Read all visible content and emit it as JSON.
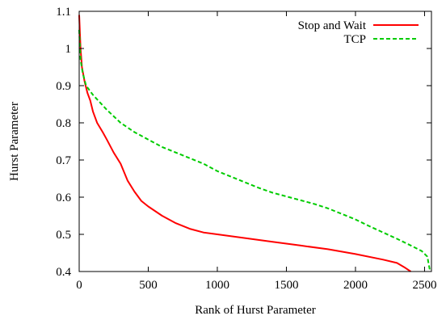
{
  "chart_data": {
    "type": "line",
    "xlabel": "Rank of Hurst Parameter",
    "ylabel": "Hurst Parameter",
    "xlim": [
      0,
      2550
    ],
    "ylim": [
      0.4,
      1.1
    ],
    "xticks": [
      0,
      500,
      1000,
      1500,
      2000,
      2500
    ],
    "yticks": [
      0.4,
      0.5,
      0.6,
      0.7,
      0.8,
      0.9,
      1,
      1.1
    ],
    "xtick_labels": [
      "0",
      "500",
      "1000",
      "1500",
      "2000",
      "2500"
    ],
    "ytick_labels": [
      "0.4",
      "0.5",
      "0.6",
      "0.7",
      "0.8",
      "0.9",
      "1",
      "1.1"
    ],
    "grid": false,
    "legend_position": "top-right",
    "series": [
      {
        "name": "Stop and Wait",
        "color": "#ff0000",
        "dash": "solid",
        "points": [
          [
            0,
            1.09
          ],
          [
            10,
            1.0
          ],
          [
            20,
            0.95
          ],
          [
            40,
            0.91
          ],
          [
            60,
            0.88
          ],
          [
            80,
            0.86
          ],
          [
            100,
            0.83
          ],
          [
            130,
            0.8
          ],
          [
            170,
            0.775
          ],
          [
            200,
            0.755
          ],
          [
            250,
            0.72
          ],
          [
            300,
            0.69
          ],
          [
            350,
            0.645
          ],
          [
            400,
            0.615
          ],
          [
            450,
            0.59
          ],
          [
            500,
            0.575
          ],
          [
            600,
            0.55
          ],
          [
            700,
            0.53
          ],
          [
            800,
            0.515
          ],
          [
            900,
            0.505
          ],
          [
            1000,
            0.5
          ],
          [
            1200,
            0.49
          ],
          [
            1400,
            0.48
          ],
          [
            1600,
            0.47
          ],
          [
            1800,
            0.46
          ],
          [
            2000,
            0.447
          ],
          [
            2200,
            0.432
          ],
          [
            2300,
            0.423
          ],
          [
            2360,
            0.41
          ],
          [
            2400,
            0.4
          ]
        ]
      },
      {
        "name": "TCP",
        "color": "#00cc00",
        "dash": "dashed",
        "points": [
          [
            0,
            1.05
          ],
          [
            10,
            0.97
          ],
          [
            25,
            0.935
          ],
          [
            50,
            0.9
          ],
          [
            100,
            0.875
          ],
          [
            200,
            0.835
          ],
          [
            300,
            0.8
          ],
          [
            400,
            0.775
          ],
          [
            500,
            0.755
          ],
          [
            600,
            0.735
          ],
          [
            700,
            0.72
          ],
          [
            800,
            0.705
          ],
          [
            900,
            0.69
          ],
          [
            1000,
            0.67
          ],
          [
            1100,
            0.655
          ],
          [
            1200,
            0.64
          ],
          [
            1300,
            0.625
          ],
          [
            1400,
            0.612
          ],
          [
            1500,
            0.602
          ],
          [
            1600,
            0.592
          ],
          [
            1700,
            0.582
          ],
          [
            1800,
            0.57
          ],
          [
            1900,
            0.555
          ],
          [
            2000,
            0.54
          ],
          [
            2100,
            0.522
          ],
          [
            2200,
            0.505
          ],
          [
            2300,
            0.488
          ],
          [
            2400,
            0.47
          ],
          [
            2480,
            0.455
          ],
          [
            2520,
            0.44
          ],
          [
            2540,
            0.4
          ]
        ]
      }
    ]
  }
}
